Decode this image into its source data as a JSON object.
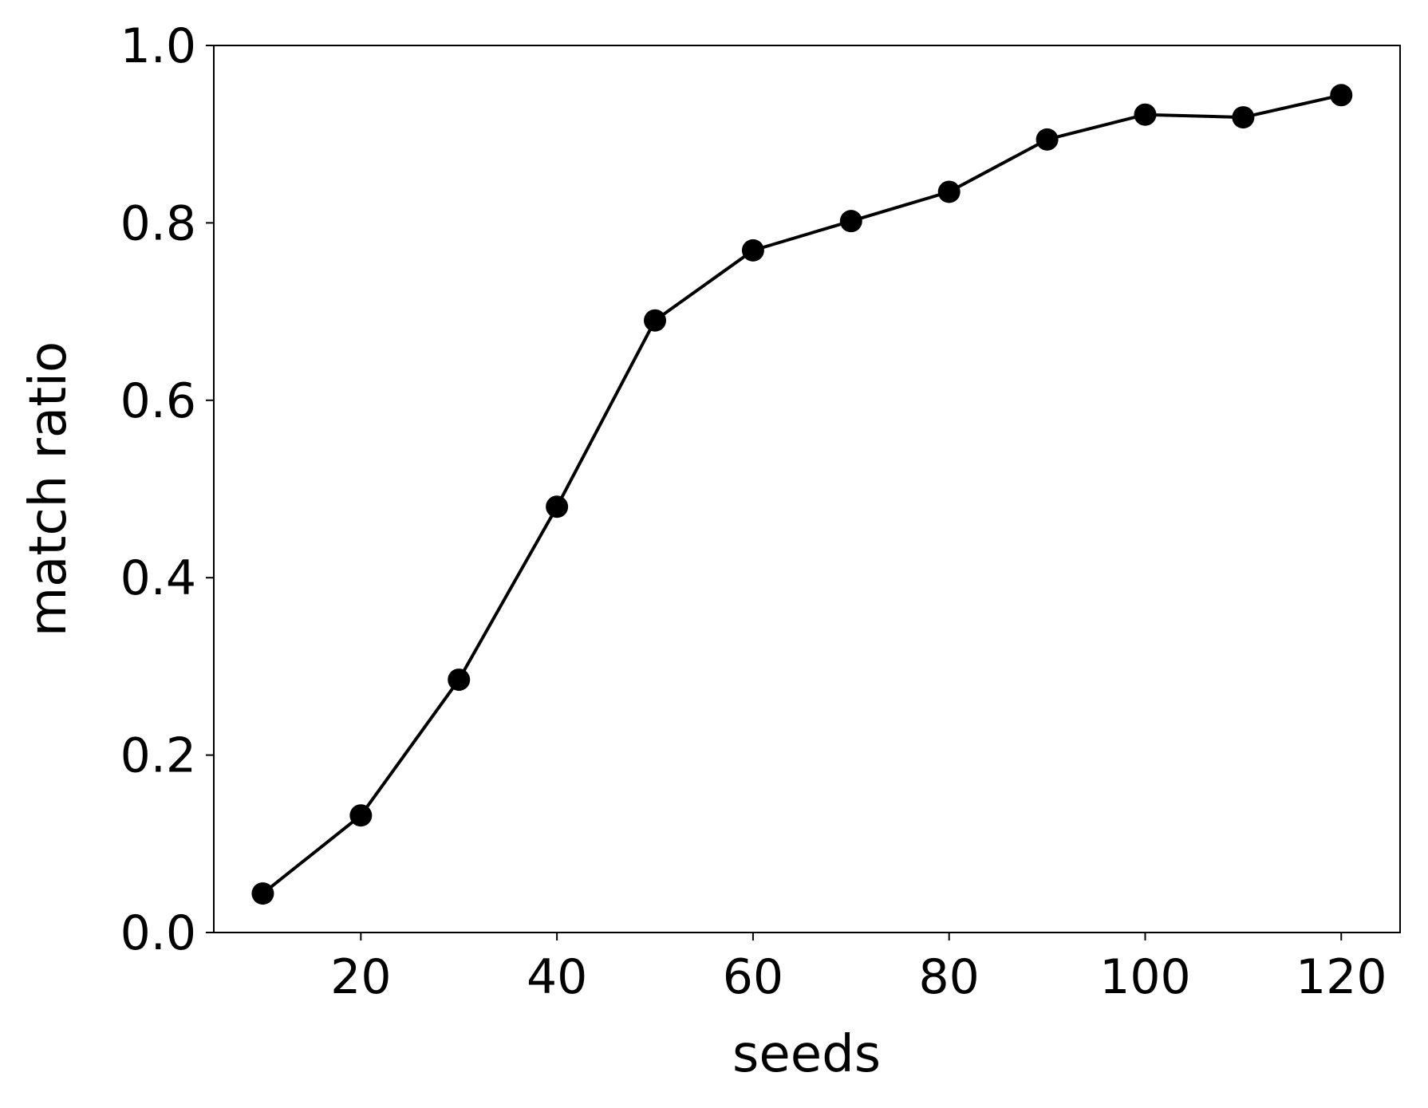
{
  "chart_data": {
    "type": "line",
    "title": "",
    "xlabel": "seeds",
    "ylabel": "match ratio",
    "xlim": [
      5,
      126
    ],
    "ylim": [
      0.0,
      1.0
    ],
    "xticks": [
      20,
      40,
      60,
      80,
      100,
      120
    ],
    "xtick_labels": [
      "20",
      "40",
      "60",
      "80",
      "100",
      "120"
    ],
    "yticks": [
      0.0,
      0.2,
      0.4,
      0.6,
      0.8,
      1.0
    ],
    "ytick_labels": [
      "0.0",
      "0.2",
      "0.4",
      "0.6",
      "0.8",
      "1.0"
    ],
    "grid": false,
    "series": [
      {
        "x": [
          10,
          20,
          30,
          40,
          50,
          60,
          70,
          80,
          90,
          100,
          110,
          120
        ],
        "y": [
          0.044,
          0.132,
          0.285,
          0.48,
          0.69,
          0.769,
          0.802,
          0.835,
          0.894,
          0.922,
          0.919,
          0.944
        ],
        "color": "#000000",
        "marker": "circle"
      }
    ]
  }
}
